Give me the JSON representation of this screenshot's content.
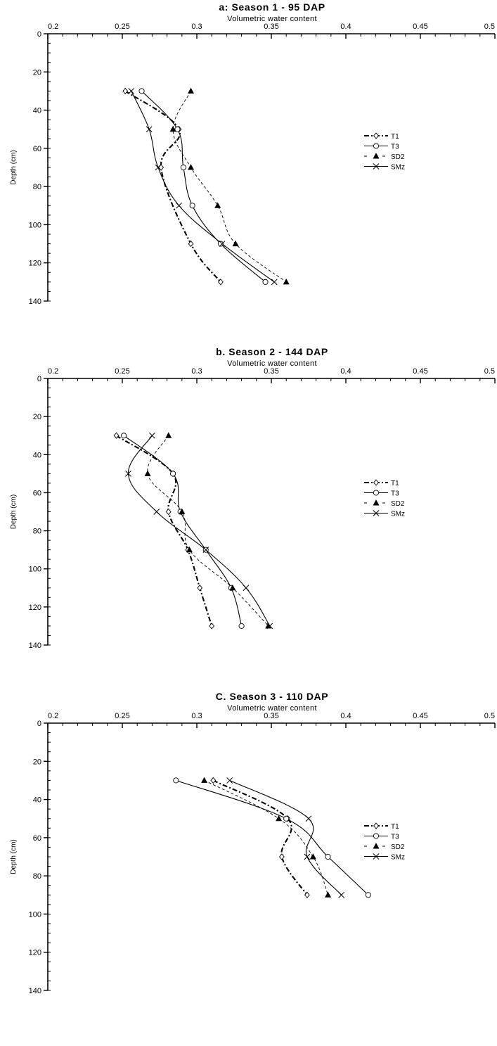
{
  "chart_data": [
    {
      "type": "line",
      "title": "a: Season 1 - 95 DAP",
      "xlabel": "Volumetric water content",
      "ylabel": "Depth (cm)",
      "xlim": [
        0.2,
        0.5
      ],
      "ylim": [
        0,
        140
      ],
      "x_axis_position": "top",
      "y_inverted": true,
      "x_ticks": [
        "0.2",
        "0.25",
        "0.3",
        "0.35",
        "0.4",
        "0.45",
        "0.5"
      ],
      "y_ticks": [
        "0",
        "20",
        "40",
        "60",
        "80",
        "100",
        "120",
        "140"
      ],
      "legend_position": "right",
      "series": [
        {
          "name": "T1",
          "marker": "diamond",
          "line": "dashdot",
          "depth": [
            30,
            50,
            70,
            110,
            130
          ],
          "values": [
            0.252,
            0.288,
            0.276,
            0.296,
            0.316
          ]
        },
        {
          "name": "T3",
          "marker": "circle",
          "line": "solid",
          "depth": [
            30,
            50,
            70,
            90,
            110,
            130
          ],
          "values": [
            0.263,
            0.287,
            0.291,
            0.297,
            0.316,
            0.346
          ]
        },
        {
          "name": "SD2",
          "marker": "triangle",
          "line": "dashed",
          "depth": [
            30,
            50,
            70,
            90,
            110,
            130
          ],
          "values": [
            0.296,
            0.284,
            0.296,
            0.314,
            0.326,
            0.36
          ]
        },
        {
          "name": "SMz",
          "marker": "x",
          "line": "solid",
          "depth": [
            30,
            50,
            70,
            90,
            110,
            130
          ],
          "values": [
            0.256,
            0.268,
            0.274,
            0.288,
            0.317,
            0.352
          ]
        }
      ]
    },
    {
      "type": "line",
      "title": "b. Season 2 - 144 DAP",
      "xlabel": "Volumetric water content",
      "ylabel": "Depth (cm)",
      "xlim": [
        0.2,
        0.5
      ],
      "ylim": [
        0,
        140
      ],
      "x_axis_position": "top",
      "y_inverted": true,
      "x_ticks": [
        "0.2",
        "0.25",
        "0.3",
        "0.35",
        "0.4",
        "0.45",
        "0.5"
      ],
      "y_ticks": [
        "0",
        "20",
        "40",
        "60",
        "80",
        "100",
        "120",
        "140"
      ],
      "legend_position": "right",
      "series": [
        {
          "name": "T1",
          "marker": "diamond",
          "line": "dashdot",
          "depth": [
            30,
            50,
            70,
            90,
            110,
            130
          ],
          "values": [
            0.246,
            0.284,
            0.281,
            0.294,
            0.302,
            0.31
          ]
        },
        {
          "name": "T3",
          "marker": "circle",
          "line": "solid",
          "depth": [
            30,
            50,
            70,
            90,
            110,
            130
          ],
          "values": [
            0.251,
            0.284,
            0.289,
            0.306,
            0.323,
            0.33
          ]
        },
        {
          "name": "SD2",
          "marker": "triangle",
          "line": "dashed",
          "depth": [
            30,
            50,
            70,
            90,
            110,
            130
          ],
          "values": [
            0.281,
            0.267,
            0.29,
            0.295,
            0.324,
            0.348
          ]
        },
        {
          "name": "SMz",
          "marker": "x",
          "line": "solid",
          "depth": [
            30,
            50,
            70,
            90,
            110,
            130
          ],
          "values": [
            0.27,
            0.254,
            0.273,
            0.306,
            0.333,
            0.349
          ]
        }
      ]
    },
    {
      "type": "line",
      "title": "C. Season 3 - 110 DAP",
      "xlabel": "Volumetric water content",
      "ylabel": "Depth (cm)",
      "xlim": [
        0.2,
        0.5
      ],
      "ylim": [
        0,
        140
      ],
      "x_axis_position": "top",
      "y_inverted": true,
      "x_ticks": [
        "0.2",
        "0.25",
        "0.3",
        "0.35",
        "0.4",
        "0.45",
        "0.5"
      ],
      "y_ticks": [
        "0",
        "20",
        "40",
        "60",
        "80",
        "100",
        "120",
        "140"
      ],
      "legend_position": "right",
      "series": [
        {
          "name": "T1",
          "marker": "diamond",
          "line": "dashdot",
          "depth": [
            30,
            50,
            70,
            90
          ],
          "values": [
            0.311,
            0.361,
            0.357,
            0.374
          ]
        },
        {
          "name": "T3",
          "marker": "circle",
          "line": "solid",
          "depth": [
            30,
            50,
            70,
            90
          ],
          "values": [
            0.286,
            0.36,
            0.388,
            0.415
          ]
        },
        {
          "name": "SD2",
          "marker": "triangle",
          "line": "dashed",
          "depth": [
            30,
            50,
            70,
            90
          ],
          "values": [
            0.305,
            0.355,
            0.378,
            0.388
          ]
        },
        {
          "name": "SMz",
          "marker": "x",
          "line": "solid",
          "depth": [
            30,
            50,
            70,
            90
          ],
          "values": [
            0.322,
            0.375,
            0.374,
            0.397
          ]
        }
      ]
    }
  ]
}
